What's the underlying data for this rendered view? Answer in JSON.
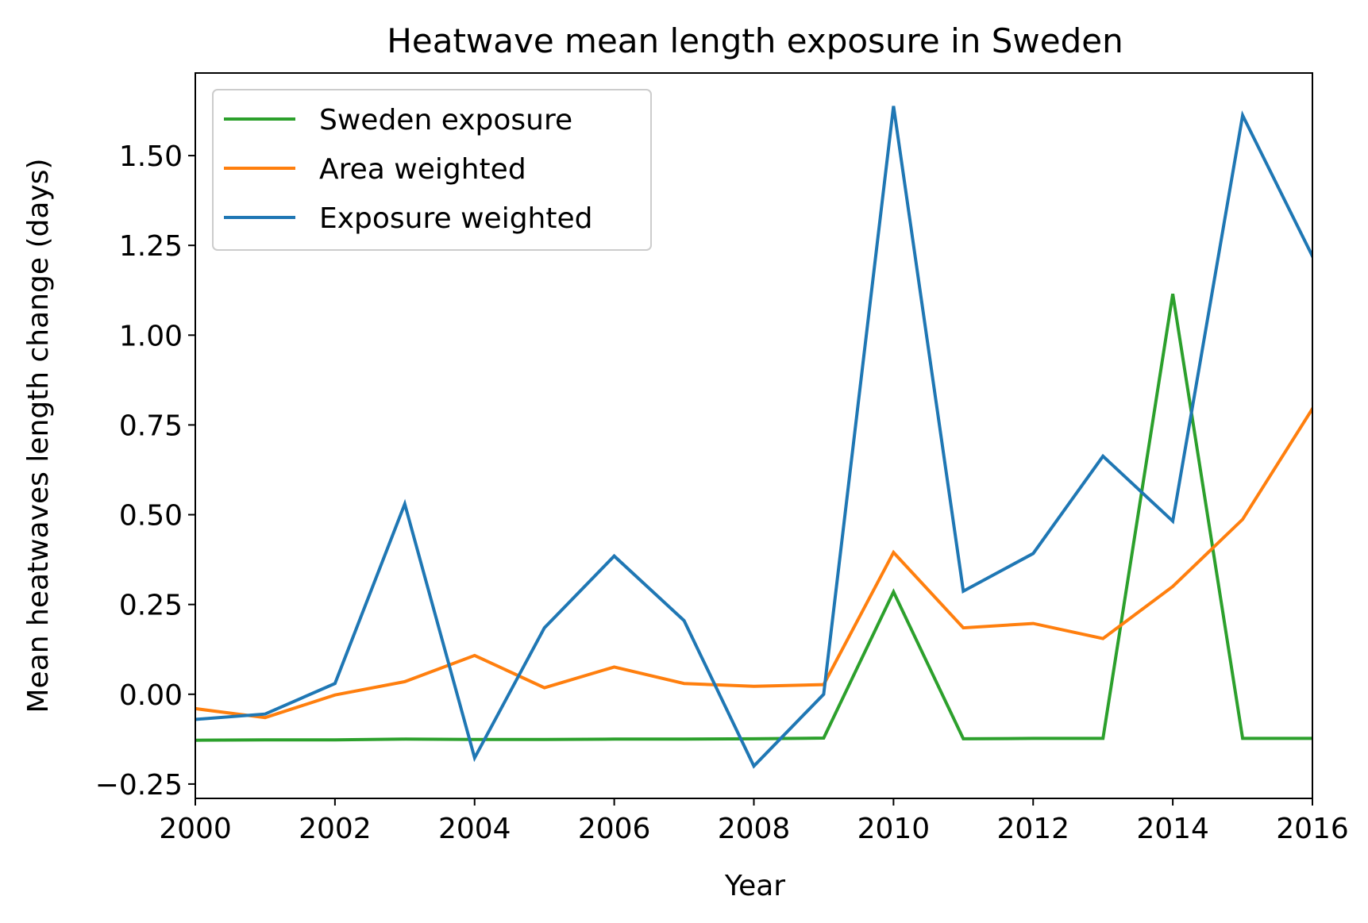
{
  "chart_data": {
    "type": "line",
    "title": "Heatwave mean length exposure in Sweden",
    "xlabel": "Year",
    "ylabel": "Mean heatwaves length change (days)",
    "xlim": [
      2000,
      2016
    ],
    "ylim": [
      -0.29,
      1.73
    ],
    "xticks": [
      2000,
      2002,
      2004,
      2006,
      2008,
      2010,
      2012,
      2014,
      2016
    ],
    "xtick_labels": [
      "2000",
      "2002",
      "2004",
      "2006",
      "2008",
      "2010",
      "2012",
      "2014",
      "2016"
    ],
    "yticks": [
      -0.25,
      0.0,
      0.25,
      0.5,
      0.75,
      1.0,
      1.25,
      1.5
    ],
    "ytick_labels": [
      "−0.25",
      "0.00",
      "0.25",
      "0.50",
      "0.75",
      "1.00",
      "1.25",
      "1.50"
    ],
    "grid": false,
    "legend_position": "top-left",
    "x": [
      2000,
      2001,
      2002,
      2003,
      2004,
      2005,
      2006,
      2007,
      2008,
      2009,
      2010,
      2011,
      2012,
      2013,
      2014,
      2015,
      2016
    ],
    "series": [
      {
        "name": "Sweden exposure",
        "color": "#2ca02c",
        "values": [
          -0.128,
          -0.127,
          -0.127,
          -0.125,
          -0.126,
          -0.126,
          -0.125,
          -0.125,
          -0.124,
          -0.122,
          0.285,
          -0.124,
          -0.123,
          -0.123,
          1.115,
          -0.123,
          -0.123
        ]
      },
      {
        "name": "Area weighted",
        "color": "#ff7f0e",
        "values": [
          -0.04,
          -0.065,
          -0.002,
          0.035,
          0.108,
          0.018,
          0.076,
          0.03,
          0.022,
          0.027,
          0.395,
          0.185,
          0.197,
          0.155,
          0.3,
          0.487,
          0.795
        ]
      },
      {
        "name": "Exposure weighted",
        "color": "#1f77b4",
        "values": [
          -0.07,
          -0.055,
          0.03,
          0.53,
          -0.177,
          0.185,
          0.385,
          0.205,
          -0.2,
          0.0,
          1.638,
          0.287,
          0.392,
          0.663,
          0.482,
          1.612,
          1.22
        ]
      }
    ]
  }
}
